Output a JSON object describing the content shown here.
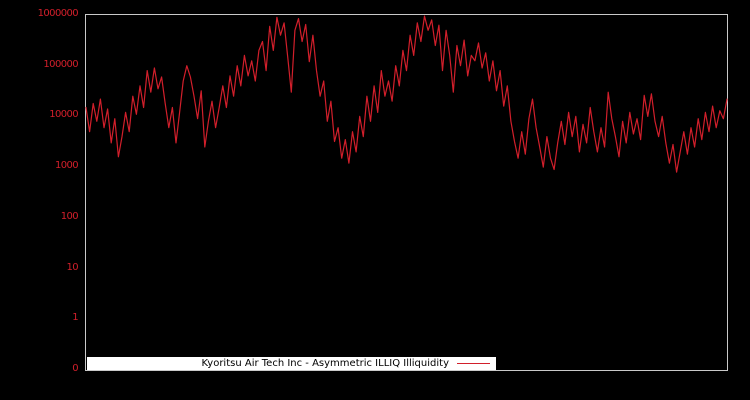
{
  "colors": {
    "background": "#000000",
    "frame": "#c9c9c9",
    "tick_label": "#d21f2b",
    "line": "#d21f2b",
    "legend_bg": "#ffffff",
    "legend_text": "#000000"
  },
  "chart_data": {
    "type": "line",
    "title": "",
    "xlabel": "",
    "ylabel": "",
    "yscale": "log",
    "ylim": [
      0.1,
      1000000
    ],
    "ytick_labels": [
      "1000000",
      "100000",
      "10000",
      "1000",
      "100",
      "10",
      "1",
      "0"
    ],
    "xtick_labels": [],
    "grid": false,
    "legend_position": "bottom-inside",
    "series": [
      {
        "name": "Kyoritsu Air Tech Inc - Asymmetric ILLIQ Illiquidity",
        "color": "#d21f2b",
        "values": [
          15000,
          5000,
          18000,
          8000,
          22000,
          6000,
          14000,
          3000,
          9000,
          1600,
          4000,
          12000,
          5000,
          25000,
          11000,
          40000,
          15000,
          80000,
          30000,
          90000,
          35000,
          60000,
          18000,
          6000,
          15000,
          3000,
          12000,
          50000,
          100000,
          60000,
          25000,
          9000,
          32000,
          2500,
          8000,
          20000,
          6000,
          15000,
          40000,
          15000,
          63000,
          25000,
          100000,
          40000,
          160000,
          63000,
          125000,
          50000,
          200000,
          300000,
          80000,
          600000,
          200000,
          900000,
          400000,
          700000,
          150000,
          30000,
          500000,
          850000,
          300000,
          650000,
          120000,
          400000,
          80000,
          25000,
          50000,
          8000,
          20000,
          3200,
          6000,
          1500,
          3500,
          1200,
          5000,
          2000,
          10000,
          4000,
          25000,
          8000,
          40000,
          12000,
          80000,
          25000,
          50000,
          20000,
          100000,
          40000,
          200000,
          80000,
          400000,
          160000,
          700000,
          300000,
          950000,
          500000,
          800000,
          250000,
          630000,
          80000,
          500000,
          160000,
          30000,
          250000,
          100000,
          320000,
          63000,
          160000,
          125000,
          280000,
          90000,
          180000,
          50000,
          125000,
          32000,
          80000,
          16000,
          40000,
          8000,
          3200,
          1500,
          5000,
          1800,
          9000,
          22000,
          6000,
          2500,
          1000,
          4000,
          1500,
          900,
          3000,
          8000,
          2800,
          12000,
          4000,
          10000,
          2000,
          7000,
          3000,
          15000,
          5000,
          2000,
          6000,
          2500,
          30000,
          9000,
          4000,
          1600,
          8000,
          3000,
          12000,
          4500,
          9000,
          3500,
          26000,
          10000,
          28000,
          8000,
          4000,
          10000,
          3000,
          1200,
          2800,
          800,
          2000,
          5000,
          1800,
          6000,
          2500,
          9000,
          3500,
          12000,
          5000,
          16000,
          6000,
          13000,
          9000,
          22000
        ]
      }
    ]
  }
}
